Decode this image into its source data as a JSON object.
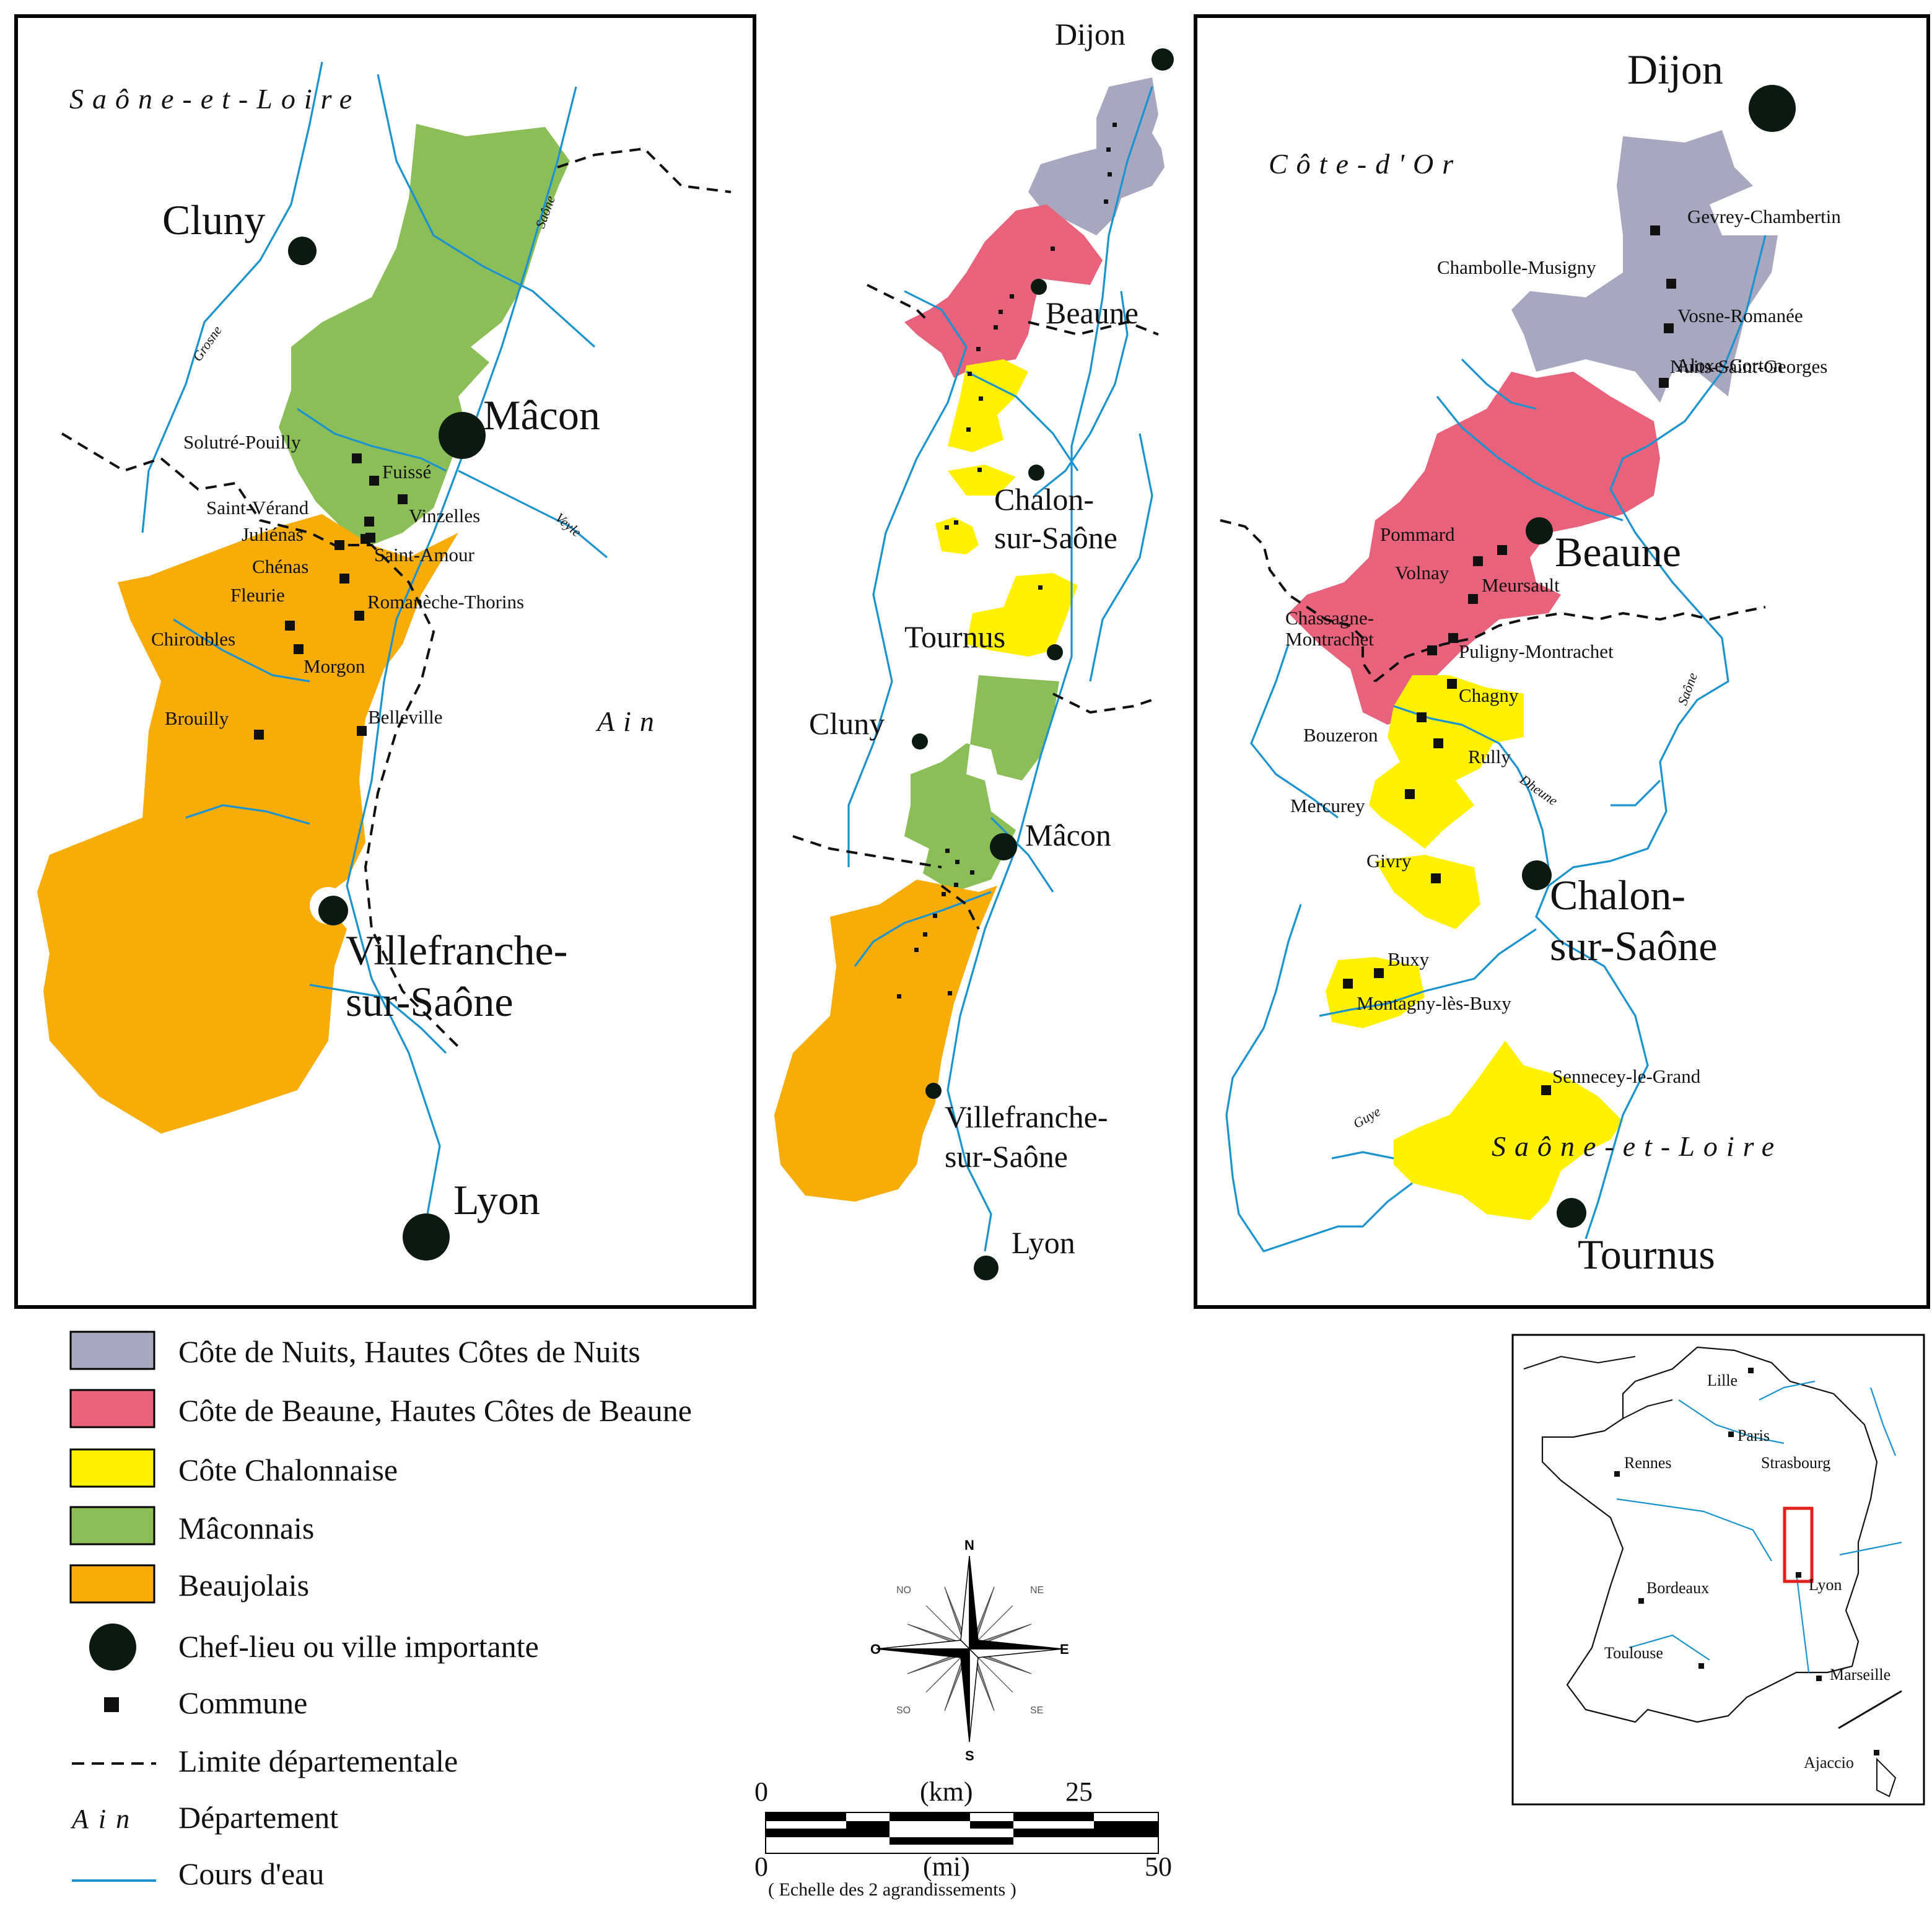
{
  "colors": {
    "cote_de_nuits": "#a7a7c0",
    "cote_de_beaune": "#e7627a",
    "cote_chalonnaise": "#fff100",
    "maconnais": "#8cbe58",
    "beaujolais": "#f7ac08",
    "river": "#1b93cf",
    "inset_frame": "#e0201c"
  },
  "left_map": {
    "department_top": "Saône-et-Loire",
    "department_right": "Ain",
    "cities": {
      "cluny": "Cluny",
      "macon": "Mâcon",
      "villefranche_1": "Villefranche-",
      "villefranche_2": "sur-Saône",
      "lyon": "Lyon"
    },
    "communes": [
      "Solutré-Pouilly",
      "Fuissé",
      "Saint-Vérand",
      "Vinzelles",
      "Juliénas",
      "Saint-Amour",
      "Chénas",
      "Fleurie",
      "Romanèche-Thorins",
      "Chiroubles",
      "Morgon",
      "Brouilly",
      "Belleville"
    ],
    "rivers": {
      "grosne": "Grosne",
      "saone": "Saône",
      "veyle": "Veyle"
    }
  },
  "middle_map": {
    "cities": {
      "dijon": "Dijon",
      "beaune": "Beaune",
      "chalon_1": "Chalon-",
      "chalon_2": "sur-Saône",
      "tournus": "Tournus",
      "cluny": "Cluny",
      "macon": "Mâcon",
      "villefranche_1": "Villefranche-",
      "villefranche_2": "sur-Saône",
      "lyon": "Lyon"
    }
  },
  "right_map": {
    "department_top": "Côte-d'Or",
    "department_bottom": "Saône-et-Loire",
    "cities": {
      "dijon": "Dijon",
      "beaune": "Beaune",
      "chalon_1": "Chalon-",
      "chalon_2": "sur-Saône",
      "tournus": "Tournus"
    },
    "communes": [
      "Gevrey-Chambertin",
      "Chambolle-Musigny",
      "Vosne-Romanée",
      "Nuits-Saint-Georges",
      "Aloxe-Corton",
      "Pommard",
      "Volnay",
      "Meursault",
      "Chassagne-",
      "Montrachet",
      "Puligny-Montrachet",
      "Chagny",
      "Bouzeron",
      "Rully",
      "Mercurey",
      "Givry",
      "Buxy",
      "Montagny-lès-Buxy",
      "Sennecey-le-Grand"
    ],
    "rivers": {
      "dheune": "Dheune",
      "saone": "Saône",
      "guye": "Guye"
    }
  },
  "legend": [
    {
      "key": "cote_de_nuits",
      "label": "Côte de Nuits, Hautes Côtes de Nuits"
    },
    {
      "key": "cote_de_beaune",
      "label": "Côte de Beaune, Hautes Côtes de Beaune"
    },
    {
      "key": "cote_chalonnaise",
      "label": "Côte Chalonnaise"
    },
    {
      "key": "maconnais",
      "label": "Mâconnais"
    },
    {
      "key": "beaujolais",
      "label": "Beaujolais"
    },
    {
      "key": "chef_lieu",
      "label": "Chef-lieu ou ville importante"
    },
    {
      "key": "commune",
      "label": "Commune"
    },
    {
      "key": "limite",
      "label": "Limite départementale"
    },
    {
      "key": "departement",
      "label": "Département",
      "sample": "Ain"
    },
    {
      "key": "cours_eau",
      "label": "Cours d'eau"
    }
  ],
  "compass": {
    "n": "N",
    "s": "S",
    "e": "E",
    "o": "O",
    "ne": "NE",
    "no": "NO",
    "se": "SE",
    "so": "SO"
  },
  "scale": {
    "km_start": "0",
    "km_unit": "(km)",
    "km_end": "25",
    "mi_start": "0",
    "mi_unit": "(mi)",
    "mi_end": "50",
    "note": "( Echelle des 2 agrandissements )"
  },
  "inset": {
    "cities": [
      "Lille",
      "Paris",
      "Strasbourg",
      "Rennes",
      "Lyon",
      "Bordeaux",
      "Toulouse",
      "Marseille",
      "Ajaccio"
    ]
  }
}
